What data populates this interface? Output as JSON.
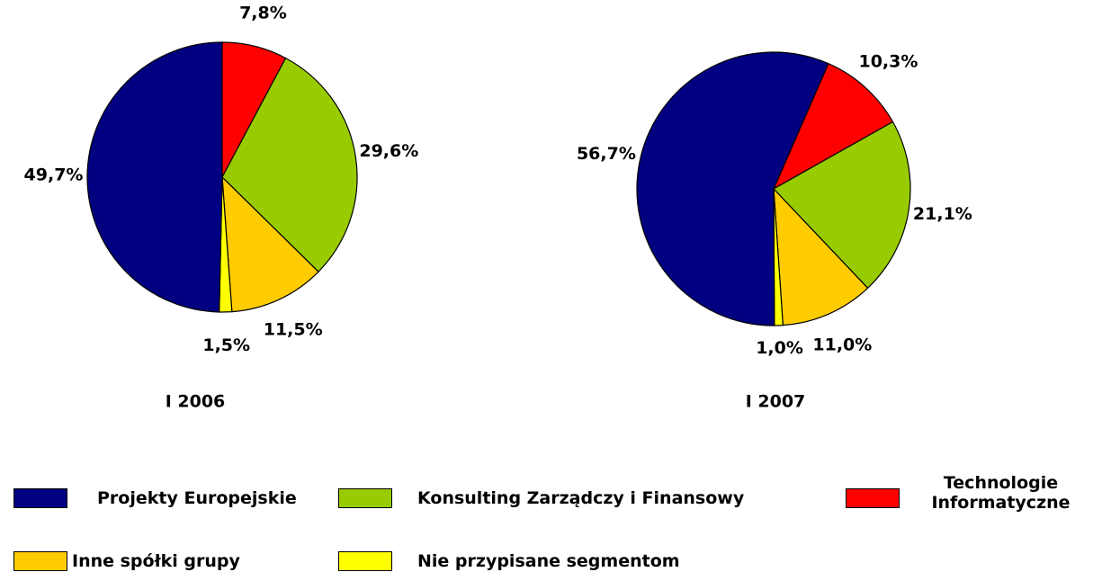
{
  "chart_data": [
    {
      "type": "pie",
      "title": "I 2006",
      "values": [
        49.7,
        29.6,
        7.8,
        11.5,
        1.5
      ],
      "value_labels": [
        "49,7%",
        "29,6%",
        "7,8%",
        "11,5%",
        "1,5%"
      ]
    },
    {
      "type": "pie",
      "title": "I 2007",
      "values": [
        56.7,
        21.1,
        10.3,
        11.0,
        1.0
      ],
      "value_labels": [
        "56,7%",
        "21,1%",
        "10,3%",
        "11,0%",
        "1,0%"
      ]
    }
  ],
  "legend": {
    "categories": [
      "Projekty Europejskie",
      "Konsulting Zarządczy i Finansowy",
      "Technologie Informatyczne",
      "Inne spółki grupy",
      "Nie przypisane segmentom"
    ],
    "colors": [
      "#000080",
      "#99cc00",
      "#ff0000",
      "#ffcc00",
      "#ffff00"
    ]
  }
}
